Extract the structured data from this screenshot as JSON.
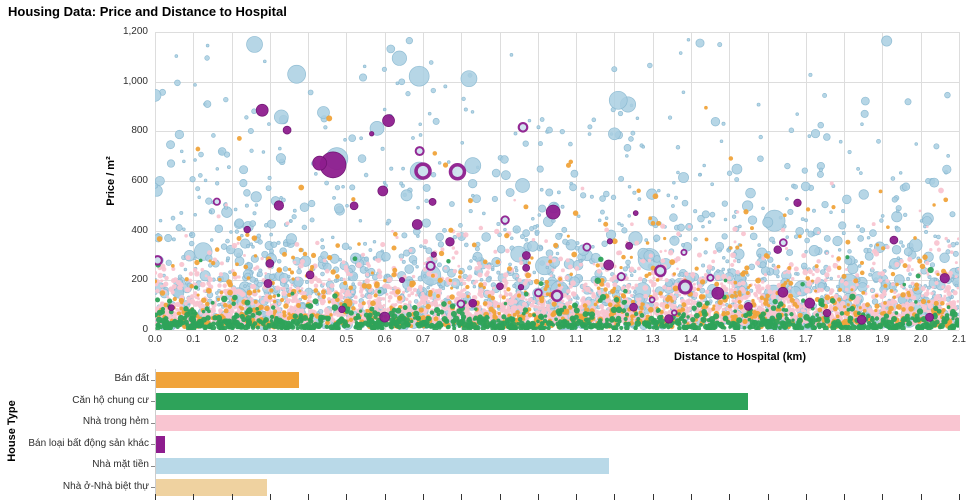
{
  "page": {
    "title": "Housing Data: Price and Distance to Hospital"
  },
  "chart_data": [
    {
      "type": "scatter",
      "title": "Housing Data: Price and Distance to Hospital",
      "xlabel": "Distance to Hospital (km)",
      "ylabel": "Price / m²",
      "xlim": [
        0,
        2.1
      ],
      "ylim": [
        0,
        1200
      ],
      "x_tick_values": [
        0,
        0.1,
        0.2,
        0.3,
        0.4,
        0.5,
        0.6,
        0.7,
        0.8,
        0.9,
        1.0,
        1.1,
        1.2,
        1.3,
        1.4,
        1.5,
        1.6,
        1.7,
        1.8,
        1.9,
        2.0,
        2.1
      ],
      "x_tick_labels": [
        "0.0",
        "0.1",
        "0.2",
        "0.3",
        "0.4",
        "0.5",
        "0.6",
        "0.7",
        "0.8",
        "0.9",
        "1.0",
        "1.1",
        "1.2",
        "1.3",
        "1.4",
        "1.5",
        "1.6",
        "1.7",
        "1.8",
        "1.9",
        "2.0",
        "2.1"
      ],
      "y_tick_values": [
        0,
        200,
        400,
        600,
        800,
        1000,
        1200
      ],
      "y_tick_labels": [
        "0",
        "200",
        "400",
        "600",
        "800",
        "1,000",
        "1,200"
      ],
      "grid_color": "#dddddd",
      "legend_position": "none",
      "series": [
        {
          "name": "Nhà mặt tiền",
          "color": "#a9cfe2",
          "stroke": "#86b6cf",
          "alpha": 0.85,
          "count": 1700,
          "seed": 7,
          "x_pow": 1.05,
          "y_offset": 15,
          "y_scale": 250,
          "y_clip": 1170,
          "outlier_frac": 0.012,
          "outlier_min": 700,
          "outlier_max": 1160,
          "r_base": 1.4,
          "r_var": 4.2,
          "r_pow": 2.6,
          "big_frac": 0.018,
          "big_min": 6,
          "big_var": 5,
          "ring_frac": 0,
          "ring_fill": "#ffffff",
          "highlights": [
            [
              0.0,
              945,
              6
            ],
            [
              0.26,
              1150,
              8
            ],
            [
              0.37,
              1030,
              9
            ],
            [
              0.69,
              1022,
              10
            ],
            [
              0.82,
              1012,
              8
            ],
            [
              1.21,
              925,
              9
            ],
            [
              0.475,
              690,
              11
            ],
            [
              0.69,
              640,
              9
            ],
            [
              0.83,
              662,
              8
            ],
            [
              0.58,
              812,
              7
            ],
            [
              1.2,
              790,
              6
            ],
            [
              0.96,
              582,
              7
            ],
            [
              1.52,
              648,
              5
            ],
            [
              0.33,
              858,
              7
            ],
            [
              0.44,
              876,
              6
            ]
          ]
        },
        {
          "name": "Nhà trong hẻm",
          "color": "#f9c5d1",
          "stroke": "",
          "alpha": 0.95,
          "count": 2400,
          "seed": 21,
          "x_pow": 1.0,
          "y_offset": 25,
          "y_scale": 85,
          "y_clip": 430,
          "outlier_frac": 0.006,
          "outlier_min": 430,
          "outlier_max": 620,
          "r_base": 1.3,
          "r_var": 1.6,
          "r_pow": 1,
          "big_frac": 0,
          "big_min": 0,
          "big_var": 0,
          "ring_frac": 0,
          "ring_fill": "#ffffff",
          "highlights": []
        },
        {
          "name": "Bán đất",
          "color": "#f0a33a",
          "stroke": "",
          "alpha": 0.95,
          "count": 780,
          "seed": 33,
          "x_pow": 1.0,
          "y_offset": 12,
          "y_scale": 105,
          "y_clip": 560,
          "outlier_frac": 0.01,
          "outlier_min": 560,
          "outlier_max": 900,
          "r_base": 1.5,
          "r_var": 1.4,
          "r_pow": 1,
          "big_frac": 0.004,
          "big_min": 3.5,
          "big_var": 1.5,
          "ring_frac": 0,
          "ring_fill": "#ffffff",
          "highlights": [
            [
              0.455,
              852,
              3
            ]
          ]
        },
        {
          "name": "Căn hộ chung cư",
          "color": "#2ea35a",
          "stroke": "",
          "alpha": 0.95,
          "count": 950,
          "seed": 45,
          "x_pow": 1.0,
          "y_offset": 6,
          "y_scale": 27,
          "y_clip": 135,
          "outlier_frac": 0.02,
          "outlier_min": 135,
          "outlier_max": 300,
          "r_base": 1.7,
          "r_var": 1.6,
          "r_pow": 1,
          "big_frac": 0,
          "big_min": 0,
          "big_var": 0,
          "ring_frac": 0,
          "ring_fill": "#ffffff",
          "highlights": []
        },
        {
          "name": "Bán loại bất động sản khác",
          "color": "#8e1d8e",
          "stroke": "#6d1270",
          "alpha": 0.95,
          "count": 38,
          "seed": 59,
          "x_pow": 1.0,
          "y_offset": 40,
          "y_scale": 220,
          "y_clip": 900,
          "outlier_frac": 0,
          "outlier_min": 0,
          "outlier_max": 0,
          "r_base": 2.2,
          "r_var": 2.6,
          "r_pow": 1,
          "big_frac": 0,
          "big_min": 0,
          "big_var": 0,
          "ring_frac": 0.3,
          "ring_fill": "#cfe2ee",
          "highlights": [
            [
              0.28,
              885,
              6
            ],
            [
              0.345,
              805,
              4
            ],
            [
              0.465,
              665,
              13
            ],
            [
              0.43,
              672,
              7
            ],
            [
              0.61,
              843,
              6
            ],
            [
              0.595,
              560,
              5
            ],
            [
              0.7,
              640,
              7,
              1
            ],
            [
              0.79,
              637,
              7,
              1
            ],
            [
              0.685,
              425,
              5
            ],
            [
              1.04,
              475,
              7
            ],
            [
              0.52,
              500,
              4
            ],
            [
              1.185,
              262,
              5
            ],
            [
              1.32,
              238,
              5,
              1
            ],
            [
              1.385,
              173,
              6,
              1
            ],
            [
              1.64,
              152,
              5
            ],
            [
              1.93,
              362,
              4
            ],
            [
              1.47,
              148,
              6
            ],
            [
              1.71,
              108,
              5
            ],
            [
              0.3,
              268,
              4
            ],
            [
              0.405,
              222,
              4
            ],
            [
              1.05,
              138,
              5,
              1
            ],
            [
              1.25,
              92,
              4
            ],
            [
              0.83,
              108,
              4
            ],
            [
              0.6,
              52,
              5
            ],
            [
              1.55,
              95,
              4
            ],
            [
              0.72,
              258,
              4,
              1
            ],
            [
              0.97,
              300,
              4
            ]
          ]
        }
      ]
    },
    {
      "type": "bar",
      "orientation": "horizontal",
      "ylabel": "House Type",
      "categories": [
        "Bán đất",
        "Căn hộ chung cư",
        "Nhà trong hẻm",
        "Bán loại bất động sản khác",
        "Nhà mặt tiền",
        "Nhà ở-Nhà biệt thự"
      ],
      "values": [
        720,
        2980,
        4050,
        45,
        2280,
        560
      ],
      "colors": [
        "#f0a33a",
        "#2ea35a",
        "#f9c5d1",
        "#8e1d8e",
        "#b9d9e8",
        "#efd2a0"
      ],
      "xlim": [
        0,
        4050
      ],
      "axis_color": "#cccccc",
      "tick_color": "#333333",
      "x_axis_labels_visible": false
    }
  ]
}
